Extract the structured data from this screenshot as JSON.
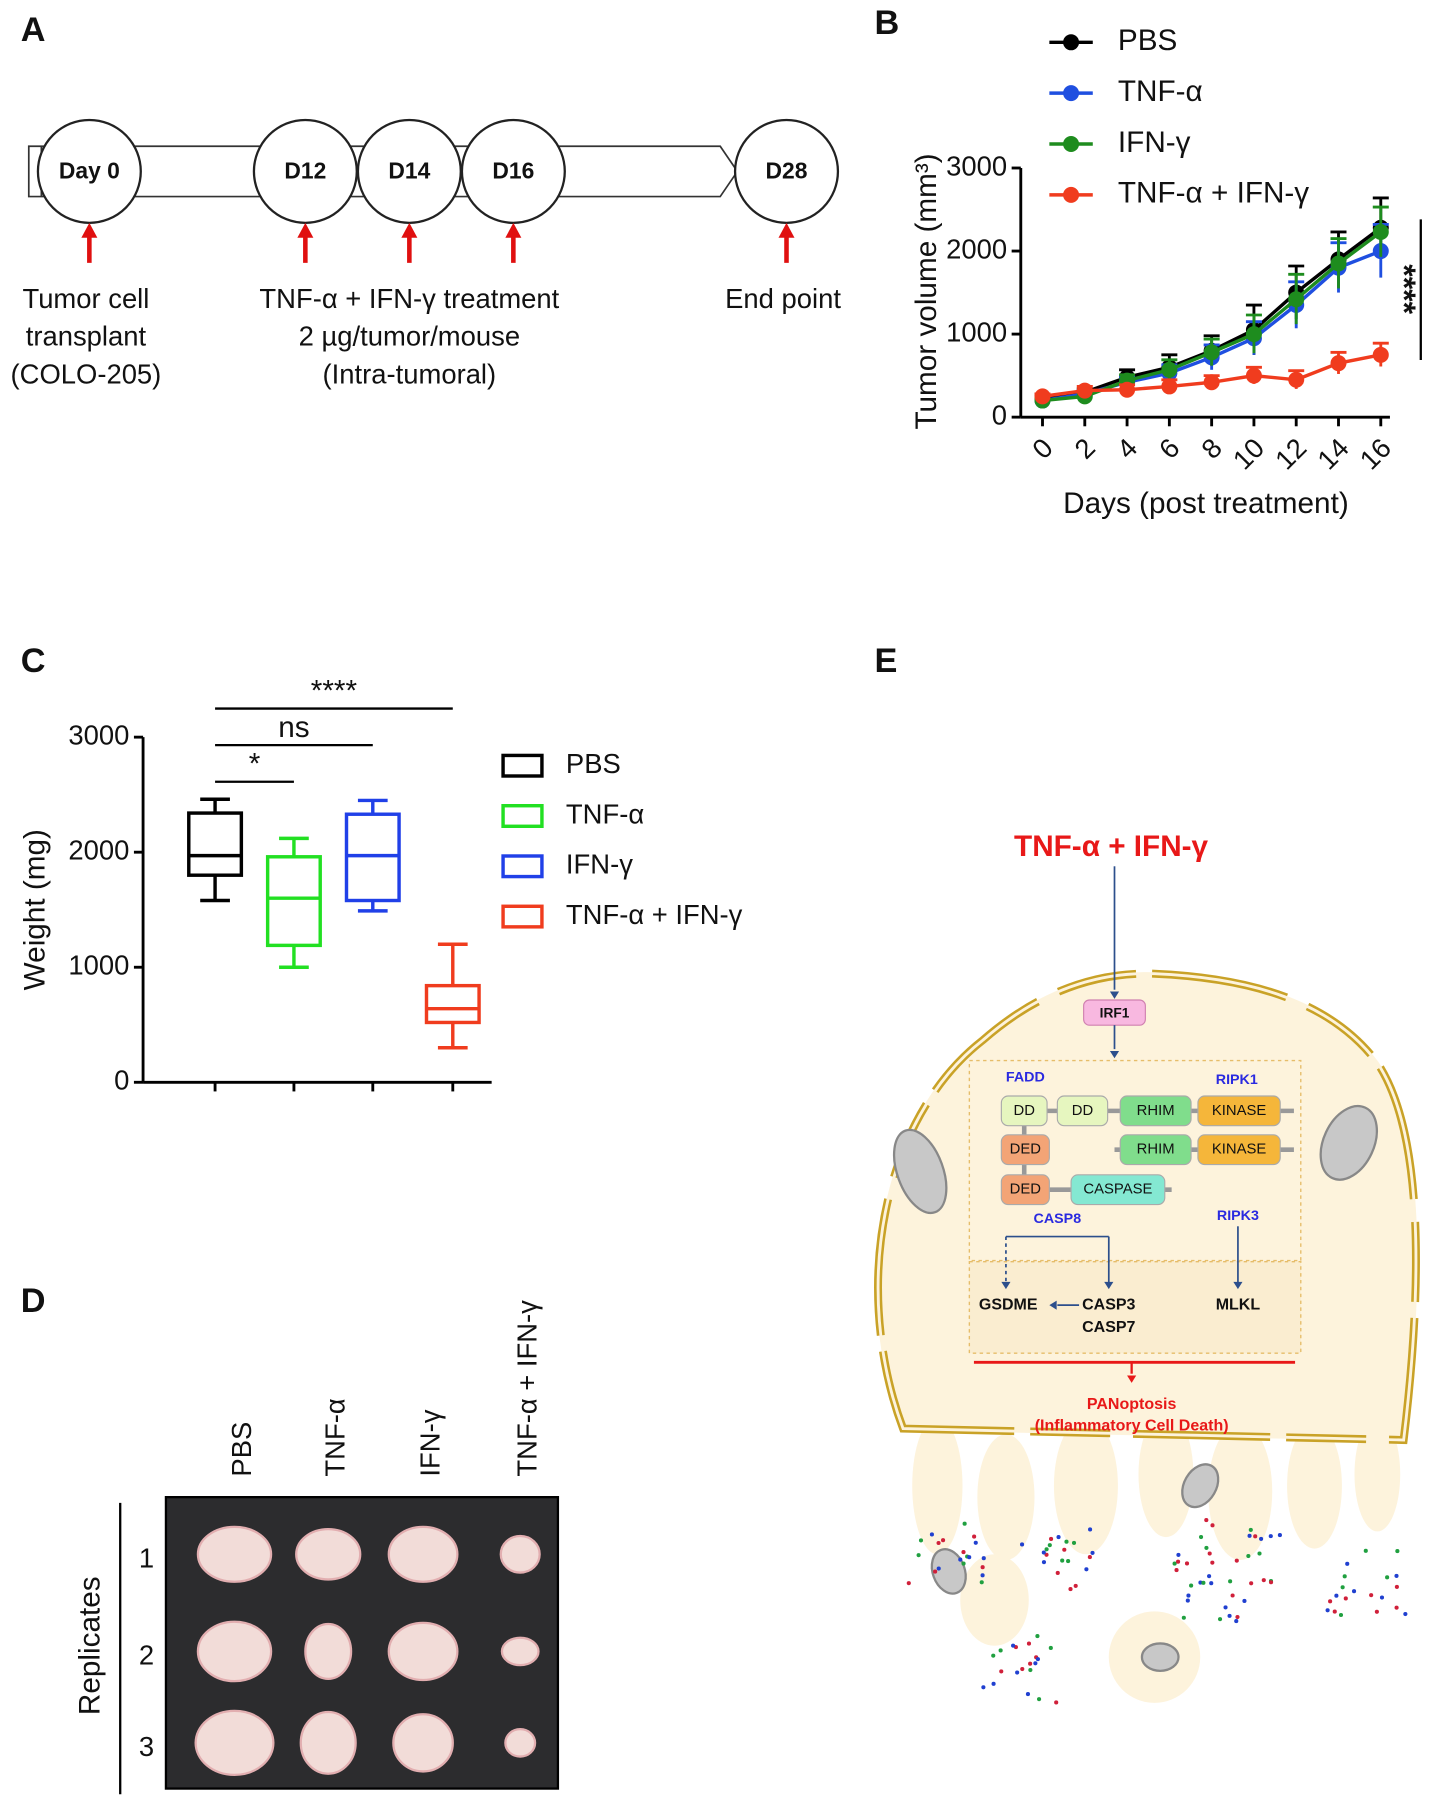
{
  "panel_labels": [
    "A",
    "B",
    "C",
    "D",
    "E"
  ],
  "timeline": {
    "days": [
      "Day 0",
      "D12",
      "D14",
      "D16",
      "D28"
    ],
    "notes": [
      {
        "lines": [
          "Tumor cell",
          "transplant",
          "(COLO-205)"
        ]
      },
      {
        "lines": [
          "TNF-α + IFN-γ treatment",
          "2 µg/tumor/mouse",
          "(Intra-tumoral)"
        ]
      },
      {
        "lines": [
          "End point"
        ]
      }
    ]
  },
  "chart_data": [
    {
      "type": "line",
      "xlabel": "Days (post treatment)",
      "ylabel": "Tumor volume (mm³)",
      "x": [
        0,
        2,
        4,
        6,
        8,
        10,
        12,
        14,
        16
      ],
      "xlim": [
        0,
        16
      ],
      "xticks": [
        0,
        2,
        4,
        6,
        8,
        10,
        12,
        14,
        16
      ],
      "ylim": [
        0,
        3000
      ],
      "yticks": [
        0,
        1000,
        2000,
        3000
      ],
      "legend": "top",
      "annotation": "****",
      "series": [
        {
          "name": "PBS",
          "color": "#000000",
          "values": [
            230,
            300,
            480,
            600,
            800,
            1050,
            1500,
            1900,
            2280
          ],
          "errors": [
            30,
            40,
            90,
            150,
            180,
            300,
            320,
            330,
            360
          ]
        },
        {
          "name": "TNF-α",
          "color": "#1f4fe0",
          "values": [
            200,
            280,
            420,
            530,
            720,
            950,
            1350,
            1800,
            2000
          ],
          "errors": [
            30,
            40,
            60,
            100,
            150,
            200,
            280,
            300,
            320
          ]
        },
        {
          "name": "IFN-γ",
          "color": "#1e8c1e",
          "values": [
            200,
            250,
            440,
            570,
            780,
            1000,
            1420,
            1850,
            2230
          ],
          "errors": [
            30,
            40,
            70,
            120,
            160,
            230,
            300,
            300,
            300
          ]
        },
        {
          "name": "TNF-α + IFN-γ",
          "color": "#f03c1e",
          "values": [
            250,
            320,
            330,
            370,
            420,
            500,
            450,
            650,
            750
          ],
          "errors": [
            30,
            50,
            60,
            80,
            80,
            100,
            110,
            130,
            140
          ]
        }
      ]
    },
    {
      "type": "box",
      "ylabel": "Weight (mg)",
      "ylim": [
        0,
        3000
      ],
      "yticks": [
        0,
        1000,
        2000,
        3000
      ],
      "legend": "right",
      "series": [
        {
          "name": "PBS",
          "color": "#000000",
          "min": 1580,
          "q1": 1800,
          "median": 1970,
          "q3": 2340,
          "max": 2460
        },
        {
          "name": "TNF-α",
          "color": "#22e022",
          "min": 1000,
          "q1": 1190,
          "median": 1600,
          "q3": 1960,
          "max": 2120
        },
        {
          "name": "IFN-γ",
          "color": "#2040e8",
          "min": 1490,
          "q1": 1580,
          "median": 1970,
          "q3": 2330,
          "max": 2450
        },
        {
          "name": "TNF-α + IFN-γ",
          "color": "#f03c1e",
          "min": 300,
          "q1": 520,
          "median": 640,
          "q3": 840,
          "max": 1200
        }
      ],
      "significance": [
        {
          "label": "*",
          "from": "PBS",
          "to": "TNF-α"
        },
        {
          "label": "ns",
          "from": "PBS",
          "to": "IFN-γ"
        },
        {
          "label": "****",
          "from": "PBS",
          "to": "TNF-α + IFN-γ"
        }
      ]
    }
  ],
  "photo": {
    "columns": [
      "PBS",
      "TNF-α",
      "IFN-γ",
      "TNF-α + IFN-γ"
    ],
    "rows": [
      1,
      2,
      3
    ],
    "row_title": "Replicates"
  },
  "diagram": {
    "stimulus": "TNF-α + IFN-γ",
    "irf1": "IRF1",
    "fadd": "FADD",
    "ripk1": "RIPK1",
    "ripk3": "RIPK3",
    "casp8": "CASP8",
    "domains": [
      "DD",
      "DD",
      "RHIM",
      "KINASE",
      "DED",
      "RHIM",
      "KINASE",
      "DED",
      "CASPASE"
    ],
    "gsdme": "GSDME",
    "casp3": "CASP3",
    "casp7": "CASP7",
    "mlkl": "MLKL",
    "outcome": [
      "PANoptosis",
      "(Inflammatory Cell Death)"
    ]
  }
}
